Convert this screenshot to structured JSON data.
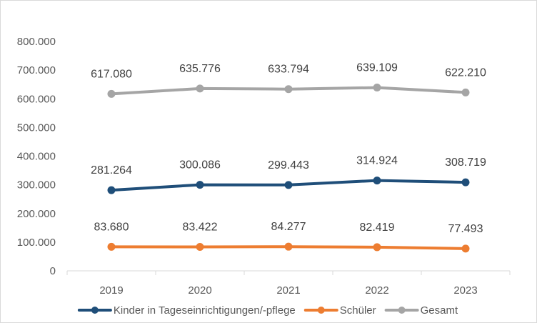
{
  "chart_data": {
    "type": "line",
    "title": "",
    "xlabel": "",
    "ylabel": "",
    "categories": [
      "2019",
      "2020",
      "2021",
      "2022",
      "2023"
    ],
    "ylim": [
      0,
      800000
    ],
    "y_ticks": [
      0,
      100000,
      200000,
      300000,
      400000,
      500000,
      600000,
      700000,
      800000
    ],
    "y_tick_labels": [
      "0",
      "100.000",
      "200.000",
      "300.000",
      "400.000",
      "500.000",
      "600.000",
      "700.000",
      "800.000"
    ],
    "grid": false,
    "legend_position": "bottom",
    "series": [
      {
        "name": "Kinder in Tageseinrichtigungen/-pflege",
        "color": "#1f4e79",
        "values": [
          281264,
          300086,
          299443,
          314924,
          308719
        ],
        "labels": [
          "281.264",
          "300.086",
          "299.443",
          "314.924",
          "308.719"
        ]
      },
      {
        "name": "Schüler",
        "color": "#ed7d31",
        "values": [
          83680,
          83422,
          84277,
          82419,
          77493
        ],
        "labels": [
          "83.680",
          "83.422",
          "84.277",
          "82.419",
          "77.493"
        ]
      },
      {
        "name": "Gesamt",
        "color": "#a5a5a5",
        "values": [
          617080,
          635776,
          633794,
          639109,
          622210
        ],
        "labels": [
          "617.080",
          "635.776",
          "633.794",
          "639.109",
          "622.210"
        ]
      }
    ]
  }
}
